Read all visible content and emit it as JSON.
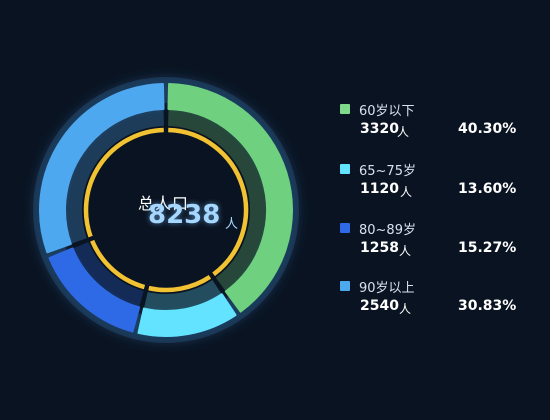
{
  "center": {
    "title": "总人口",
    "value": "8238",
    "unit": "人"
  },
  "chart_data": {
    "type": "pie",
    "style": "donut",
    "total": 8238,
    "unit": "人",
    "categories": [
      "60岁以下",
      "65~75岁",
      "80~89岁",
      "90岁以上"
    ],
    "values": [
      3320,
      1120,
      1258,
      2540
    ],
    "percentages": [
      "40.30%",
      "13.60%",
      "15.27%",
      "30.83%"
    ],
    "colors": [
      "#6fd17f",
      "#63e3ff",
      "#2f6ae6",
      "#4ea8ef"
    ],
    "legend_position": "right"
  },
  "legend": [
    {
      "name": "60岁以下",
      "value": "3320",
      "unit": "人",
      "percent": "40.30%",
      "color": "#7ed98a"
    },
    {
      "name": "65~75岁",
      "value": "1120",
      "unit": "人",
      "percent": "13.60%",
      "color": "#63e3ff"
    },
    {
      "name": "80~89岁",
      "value": "1258",
      "unit": "人",
      "percent": "15.27%",
      "color": "#2f6ae6"
    },
    {
      "name": "90岁以上",
      "value": "2540",
      "unit": "人",
      "percent": "30.83%",
      "color": "#4ea8ef"
    }
  ],
  "colors": {
    "background": "#0a1321",
    "inner_ring": "#f1c232"
  }
}
